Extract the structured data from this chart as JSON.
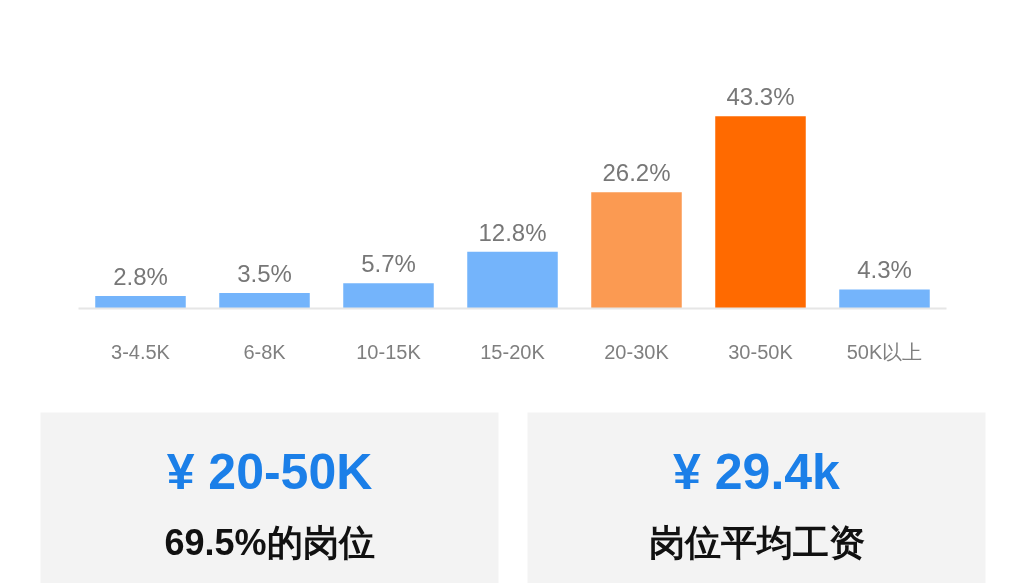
{
  "chart_data": [
    {
      "type": "bar",
      "categories": [
        "3-4.5K",
        "6-8K",
        "10-15K",
        "15-20K",
        "20-30K",
        "30-50K",
        "50K以上"
      ],
      "values": [
        2.8,
        3.5,
        5.7,
        12.8,
        26.2,
        43.3,
        4.3
      ],
      "colors": [
        "#74b4fb",
        "#74b4fb",
        "#74b4fb",
        "#74b4fb",
        "#fb9a52",
        "#ff6a00",
        "#74b4fb"
      ],
      "value_labels": [
        "2.8%",
        "3.5%",
        "5.7%",
        "12.8%",
        "26.2%",
        "43.3%",
        "4.3%"
      ]
    },
    {
      "type": "other",
      "title": "¥ 20-50K",
      "subtitle": "69.5%的岗位"
    },
    {
      "type": "other",
      "title": "¥ 29.4k",
      "subtitle": "岗位平均工资"
    }
  ]
}
